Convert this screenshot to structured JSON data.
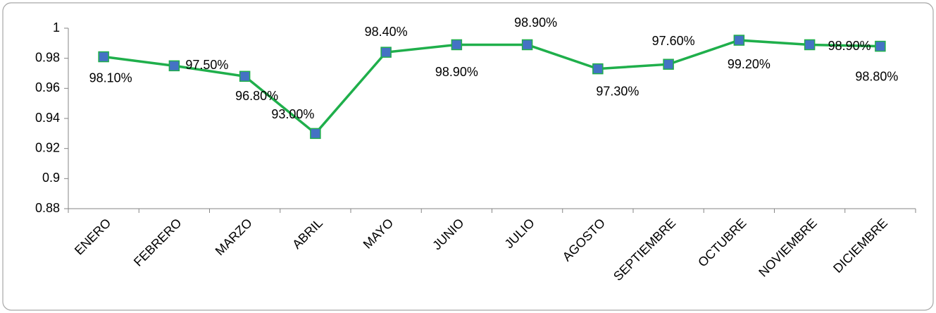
{
  "chart_data": {
    "type": "line",
    "categories": [
      "ENERO",
      "FEBRERO",
      "MARZO",
      "ABRIL",
      "MAYO",
      "JUNIO",
      "JULIO",
      "AGOSTO",
      "SEPTIEMBRE",
      "OCTUBRE",
      "NOVIEMBRE",
      "DICIEMBRE"
    ],
    "values": [
      0.981,
      0.975,
      0.968,
      0.93,
      0.984,
      0.989,
      0.989,
      0.973,
      0.976,
      0.992,
      0.989,
      0.988
    ],
    "value_labels": [
      "98.10%",
      "97.50%",
      "96.80%",
      "93.00%",
      "98.40%",
      "98.90%",
      "98.90%",
      "97.30%",
      "97.60%",
      "99.20%",
      "98.90%",
      "98.80%"
    ],
    "color": "#1faf4b",
    "marker_color": "#4472c4",
    "ylim": [
      0.88,
      1
    ],
    "yticks": [
      0.88,
      0.9,
      0.92,
      0.94,
      0.96,
      0.98,
      1
    ],
    "grid": false
  }
}
